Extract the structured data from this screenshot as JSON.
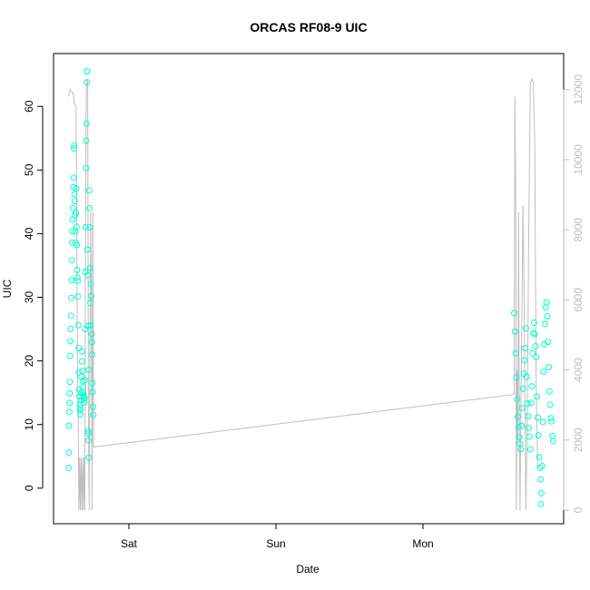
{
  "chart_data": {
    "type": "scatter",
    "title": "ORCAS RF08-9 UIC",
    "xlabel": "Date",
    "ylabel": "UIC",
    "x_ticks": [
      "Sat",
      "Sun",
      "Mon"
    ],
    "y_ticks": [
      0,
      10,
      20,
      30,
      40,
      50,
      60
    ],
    "y_right_ticks": [
      0,
      2000,
      4000,
      6000,
      8000,
      10000,
      12000
    ],
    "ylim": [
      -5,
      65.5
    ],
    "y_right_lim": [
      0,
      12000
    ],
    "grid": false,
    "legend": "none",
    "colors": {
      "points": "#00ffcc",
      "line": "#bebebe"
    },
    "series": [
      {
        "type": "scatter",
        "axis": "left",
        "points": [
          [
            -0.41,
            3.2
          ],
          [
            -0.41,
            5.6
          ],
          [
            -0.408,
            9.8
          ],
          [
            -0.405,
            12.0
          ],
          [
            -0.404,
            13.4
          ],
          [
            -0.403,
            14.9
          ],
          [
            -0.402,
            16.7
          ],
          [
            -0.4,
            20.8
          ],
          [
            -0.398,
            23.1
          ],
          [
            -0.396,
            25.0
          ],
          [
            -0.394,
            27.1
          ],
          [
            -0.392,
            29.9
          ],
          [
            -0.39,
            32.7
          ],
          [
            -0.388,
            35.8
          ],
          [
            -0.386,
            38.6
          ],
          [
            -0.384,
            40.4
          ],
          [
            -0.382,
            42.2
          ],
          [
            -0.38,
            44.0
          ],
          [
            -0.378,
            47.3
          ],
          [
            -0.376,
            48.8
          ],
          [
            -0.374,
            53.4
          ],
          [
            -0.372,
            53.9
          ],
          [
            -0.37,
            46.2
          ],
          [
            -0.368,
            45.1
          ],
          [
            -0.366,
            42.9
          ],
          [
            -0.364,
            40.3
          ],
          [
            -0.362,
            38.6
          ],
          [
            -0.36,
            43.3
          ],
          [
            -0.358,
            47.1
          ],
          [
            -0.356,
            41.1
          ],
          [
            -0.354,
            38.2
          ],
          [
            -0.352,
            34.3
          ],
          [
            -0.35,
            33.1
          ],
          [
            -0.348,
            32.6
          ],
          [
            -0.346,
            30.1
          ],
          [
            -0.344,
            25.6
          ],
          [
            -0.342,
            22.0
          ],
          [
            -0.34,
            18.2
          ],
          [
            -0.338,
            15.5
          ],
          [
            -0.336,
            14.4
          ],
          [
            -0.334,
            13.1
          ],
          [
            -0.332,
            12.2
          ],
          [
            -0.33,
            11.6
          ],
          [
            -0.328,
            12.6
          ],
          [
            -0.326,
            13.8
          ],
          [
            -0.324,
            15.0
          ],
          [
            -0.322,
            17.5
          ],
          [
            -0.32,
            19.9
          ],
          [
            -0.318,
            21.5
          ],
          [
            -0.316,
            18.4
          ],
          [
            -0.314,
            16.8
          ],
          [
            -0.312,
            15.9
          ],
          [
            -0.31,
            15.1
          ],
          [
            -0.308,
            14.6
          ],
          [
            -0.306,
            14.0
          ],
          [
            -0.304,
            13.5
          ],
          [
            -0.302,
            14.2
          ],
          [
            -0.3,
            17.0
          ],
          [
            -0.298,
            25.0
          ],
          [
            -0.296,
            34.0
          ],
          [
            -0.294,
            41.0
          ],
          [
            -0.292,
            50.3
          ],
          [
            -0.29,
            54.6
          ],
          [
            -0.288,
            57.3
          ],
          [
            -0.286,
            63.8
          ],
          [
            -0.285,
            65.5
          ],
          [
            -0.284,
            65.5
          ],
          [
            -0.282,
            37.5
          ],
          [
            -0.28,
            33.5
          ],
          [
            -0.278,
            25.5
          ],
          [
            -0.276,
            9.0
          ],
          [
            -0.275,
            8.6
          ],
          [
            -0.274,
            7.5
          ],
          [
            -0.273,
            4.8
          ],
          [
            -0.272,
            18.6
          ],
          [
            -0.27,
            46.8
          ],
          [
            -0.268,
            44.0
          ],
          [
            -0.266,
            41.0
          ],
          [
            -0.264,
            34.6
          ],
          [
            -0.262,
            29.1
          ],
          [
            -0.26,
            25.6
          ],
          [
            -0.258,
            32.1
          ],
          [
            -0.256,
            30.2
          ],
          [
            -0.254,
            24.2
          ],
          [
            -0.252,
            23.0
          ],
          [
            -0.25,
            21.0
          ],
          [
            -0.248,
            16.5
          ],
          [
            -0.246,
            15.1
          ],
          [
            -0.244,
            12.8
          ],
          [
            -0.242,
            11.5
          ],
          [
            2.62,
            27.5
          ],
          [
            2.625,
            24.6
          ],
          [
            2.63,
            21.2
          ],
          [
            2.635,
            17.4
          ],
          [
            2.64,
            14.0
          ],
          [
            2.645,
            11.2
          ],
          [
            2.65,
            9.6
          ],
          [
            2.655,
            8.0
          ],
          [
            2.66,
            7.0
          ],
          [
            2.665,
            6.1
          ],
          [
            2.67,
            9.8
          ],
          [
            2.675,
            12.6
          ],
          [
            2.68,
            15.6
          ],
          [
            2.685,
            18.0
          ],
          [
            2.69,
            20.1
          ],
          [
            2.695,
            22.0
          ],
          [
            2.7,
            25.1
          ],
          [
            2.705,
            17.5
          ],
          [
            2.71,
            13.3
          ],
          [
            2.715,
            11.3
          ],
          [
            2.72,
            9.5
          ],
          [
            2.725,
            8.1
          ],
          [
            2.73,
            6.1
          ],
          [
            2.735,
            13.4
          ],
          [
            2.74,
            16.0
          ],
          [
            2.745,
            21.2
          ],
          [
            2.75,
            24.4
          ],
          [
            2.755,
            26.0
          ],
          [
            2.76,
            24.2
          ],
          [
            2.765,
            22.3
          ],
          [
            2.77,
            20.6
          ],
          [
            2.775,
            14.4
          ],
          [
            2.78,
            11.1
          ],
          [
            2.785,
            8.3
          ],
          [
            2.79,
            4.9
          ],
          [
            2.795,
            3.2
          ],
          [
            2.8,
            1.4
          ],
          [
            2.802,
            -2.5
          ],
          [
            2.805,
            -0.8
          ],
          [
            2.81,
            3.5
          ],
          [
            2.815,
            10.4
          ],
          [
            2.82,
            18.3
          ],
          [
            2.825,
            22.6
          ],
          [
            2.83,
            25.8
          ],
          [
            2.835,
            28.4
          ],
          [
            2.84,
            29.2
          ],
          [
            2.845,
            27.0
          ],
          [
            2.85,
            23.0
          ],
          [
            2.855,
            19.0
          ],
          [
            2.86,
            15.2
          ],
          [
            2.865,
            13.1
          ],
          [
            2.87,
            11.0
          ],
          [
            2.875,
            10.5
          ],
          [
            2.88,
            8.2
          ],
          [
            2.885,
            7.4
          ]
        ]
      },
      {
        "type": "line",
        "axis": "right",
        "points": [
          [
            -0.41,
            11800
          ],
          [
            -0.4,
            12000
          ],
          [
            -0.38,
            11900
          ],
          [
            -0.37,
            11600
          ],
          [
            -0.36,
            11500
          ],
          [
            -0.355,
            9000
          ],
          [
            -0.35,
            4000
          ],
          [
            -0.345,
            3000
          ],
          [
            -0.34,
            0
          ],
          [
            -0.335,
            1500
          ],
          [
            -0.33,
            0
          ],
          [
            -0.325,
            1500
          ],
          [
            -0.32,
            0
          ],
          [
            -0.315,
            1500
          ],
          [
            -0.31,
            0
          ],
          [
            -0.305,
            1500
          ],
          [
            -0.3,
            0
          ],
          [
            -0.295,
            7500
          ],
          [
            -0.29,
            12000
          ],
          [
            -0.285,
            12300
          ],
          [
            -0.28,
            12200
          ],
          [
            -0.275,
            3000
          ],
          [
            -0.27,
            0
          ],
          [
            -0.265,
            4500
          ],
          [
            -0.26,
            8500
          ],
          [
            -0.255,
            6000
          ],
          [
            -0.25,
            0
          ],
          [
            -0.245,
            8500
          ],
          [
            -0.24,
            1800
          ],
          [
            2.62,
            3300
          ],
          [
            2.625,
            11800
          ],
          [
            2.63,
            9000
          ],
          [
            2.635,
            0
          ],
          [
            2.64,
            4000
          ],
          [
            2.645,
            2000
          ],
          [
            2.65,
            8500
          ],
          [
            2.655,
            2500
          ],
          [
            2.66,
            0
          ],
          [
            2.67,
            4500
          ],
          [
            2.68,
            8700
          ],
          [
            2.69,
            5000
          ],
          [
            2.7,
            0
          ],
          [
            2.71,
            3000
          ],
          [
            2.72,
            8200
          ],
          [
            2.73,
            12200
          ],
          [
            2.74,
            12300
          ],
          [
            2.75,
            12200
          ],
          [
            2.76,
            10500
          ],
          [
            2.77,
            3500
          ],
          [
            2.78,
            1200
          ]
        ]
      }
    ]
  }
}
